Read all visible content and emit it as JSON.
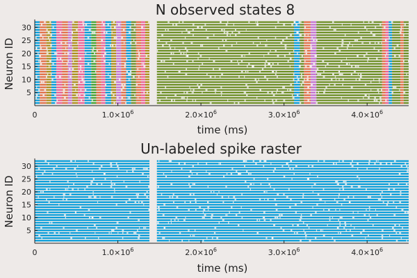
{
  "chart_data": [
    {
      "type": "scatter",
      "title": "N observed states 8",
      "xlabel": "time (ms)",
      "ylabel": "Neuron ID",
      "xlim": [
        0,
        4500000
      ],
      "ylim": [
        0,
        33
      ],
      "x_ticks": [
        {
          "value": 0,
          "label": "0",
          "exp": ""
        },
        {
          "value": 1000000,
          "label": "1.0×10",
          "exp": "6"
        },
        {
          "value": 2000000,
          "label": "2.0×10",
          "exp": "6"
        },
        {
          "value": 3000000,
          "label": "3.0×10",
          "exp": "6"
        },
        {
          "value": 4000000,
          "label": "4.0×10",
          "exp": "6"
        }
      ],
      "y_ticks": [
        5,
        10,
        15,
        20,
        25,
        30
      ],
      "grid": false,
      "neurons": 32,
      "gap": [
        1380000,
        1470000
      ],
      "state_colors": [
        "#009bd9",
        "#e26f46",
        "#3ea12c",
        "#c371d2",
        "#ac8e18",
        "#00a9ad",
        "#ed5e93",
        "#6b8e23"
      ],
      "state_segments": [
        {
          "start": 0,
          "end": 60000,
          "state": 0
        },
        {
          "start": 60000,
          "end": 140000,
          "state": 1
        },
        {
          "start": 140000,
          "end": 200000,
          "state": 4
        },
        {
          "start": 200000,
          "end": 260000,
          "state": 0
        },
        {
          "start": 260000,
          "end": 330000,
          "state": 6
        },
        {
          "start": 330000,
          "end": 400000,
          "state": 1
        },
        {
          "start": 400000,
          "end": 450000,
          "state": 3
        },
        {
          "start": 450000,
          "end": 520000,
          "state": 4
        },
        {
          "start": 520000,
          "end": 600000,
          "state": 6
        },
        {
          "start": 600000,
          "end": 680000,
          "state": 0
        },
        {
          "start": 680000,
          "end": 740000,
          "state": 2
        },
        {
          "start": 740000,
          "end": 800000,
          "state": 1
        },
        {
          "start": 800000,
          "end": 850000,
          "state": 6
        },
        {
          "start": 850000,
          "end": 920000,
          "state": 0
        },
        {
          "start": 920000,
          "end": 980000,
          "state": 4
        },
        {
          "start": 980000,
          "end": 1040000,
          "state": 3
        },
        {
          "start": 1040000,
          "end": 1100000,
          "state": 1
        },
        {
          "start": 1100000,
          "end": 1160000,
          "state": 0
        },
        {
          "start": 1160000,
          "end": 1220000,
          "state": 7
        },
        {
          "start": 1220000,
          "end": 1280000,
          "state": 1
        },
        {
          "start": 1280000,
          "end": 1330000,
          "state": 6
        },
        {
          "start": 1330000,
          "end": 1380000,
          "state": 4
        },
        {
          "start": 1470000,
          "end": 3120000,
          "state": 7
        },
        {
          "start": 3120000,
          "end": 3190000,
          "state": 0
        },
        {
          "start": 3190000,
          "end": 3240000,
          "state": 7
        },
        {
          "start": 3240000,
          "end": 3320000,
          "state": 1
        },
        {
          "start": 3320000,
          "end": 3390000,
          "state": 3
        },
        {
          "start": 3390000,
          "end": 4180000,
          "state": 7
        },
        {
          "start": 4180000,
          "end": 4220000,
          "state": 1
        },
        {
          "start": 4220000,
          "end": 4260000,
          "state": 6
        },
        {
          "start": 4260000,
          "end": 4300000,
          "state": 0
        },
        {
          "start": 4300000,
          "end": 4400000,
          "state": 7
        },
        {
          "start": 4400000,
          "end": 4440000,
          "state": 1
        },
        {
          "start": 4440000,
          "end": 4500000,
          "state": 7
        }
      ]
    },
    {
      "type": "scatter",
      "title": "Un-labeled spike raster",
      "xlabel": "time (ms)",
      "ylabel": "Neuron ID",
      "xlim": [
        0,
        4500000
      ],
      "ylim": [
        0,
        33
      ],
      "x_ticks": [
        {
          "value": 0,
          "label": "0",
          "exp": ""
        },
        {
          "value": 1000000,
          "label": "1.0×10",
          "exp": "6"
        },
        {
          "value": 2000000,
          "label": "2.0×10",
          "exp": "6"
        },
        {
          "value": 3000000,
          "label": "3.0×10",
          "exp": "6"
        },
        {
          "value": 4000000,
          "label": "4.0×10",
          "exp": "6"
        }
      ],
      "y_ticks": [
        5,
        10,
        15,
        20,
        25,
        30
      ],
      "grid": false,
      "neurons": 32,
      "gap": [
        1380000,
        1470000
      ],
      "series_color": "#009bd9"
    }
  ]
}
